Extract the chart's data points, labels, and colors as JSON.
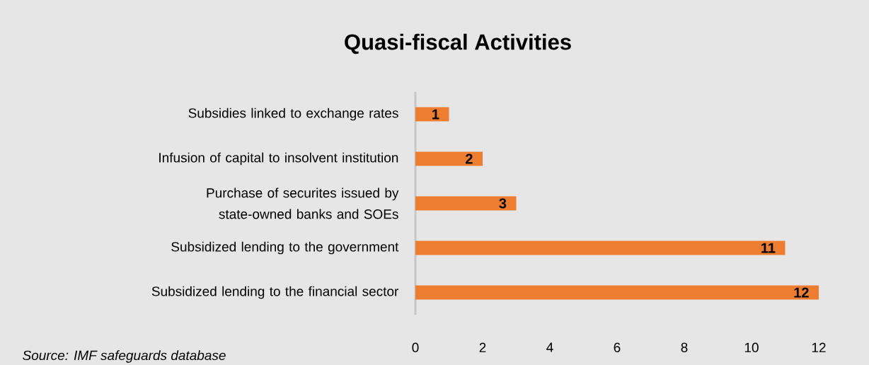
{
  "chart_data": {
    "type": "bar",
    "orientation": "horizontal",
    "title": "Quasi-fiscal Activities",
    "categories": [
      "Subsidies linked to exchange rates",
      "Infusion of capital to insolvent institution",
      "Purchase of securites issued by state-owned banks and SOEs",
      "Subsidized lending to the government",
      "Subsidized lending to the financial sector"
    ],
    "values": [
      1,
      2,
      3,
      11,
      12
    ],
    "color": "#ed7d31",
    "data_labels": true,
    "xlim": [
      0,
      12
    ],
    "xticks": [
      0,
      2,
      4,
      6,
      8,
      10,
      12
    ],
    "annotations": [
      "Source: IMF safeguards database"
    ]
  }
}
